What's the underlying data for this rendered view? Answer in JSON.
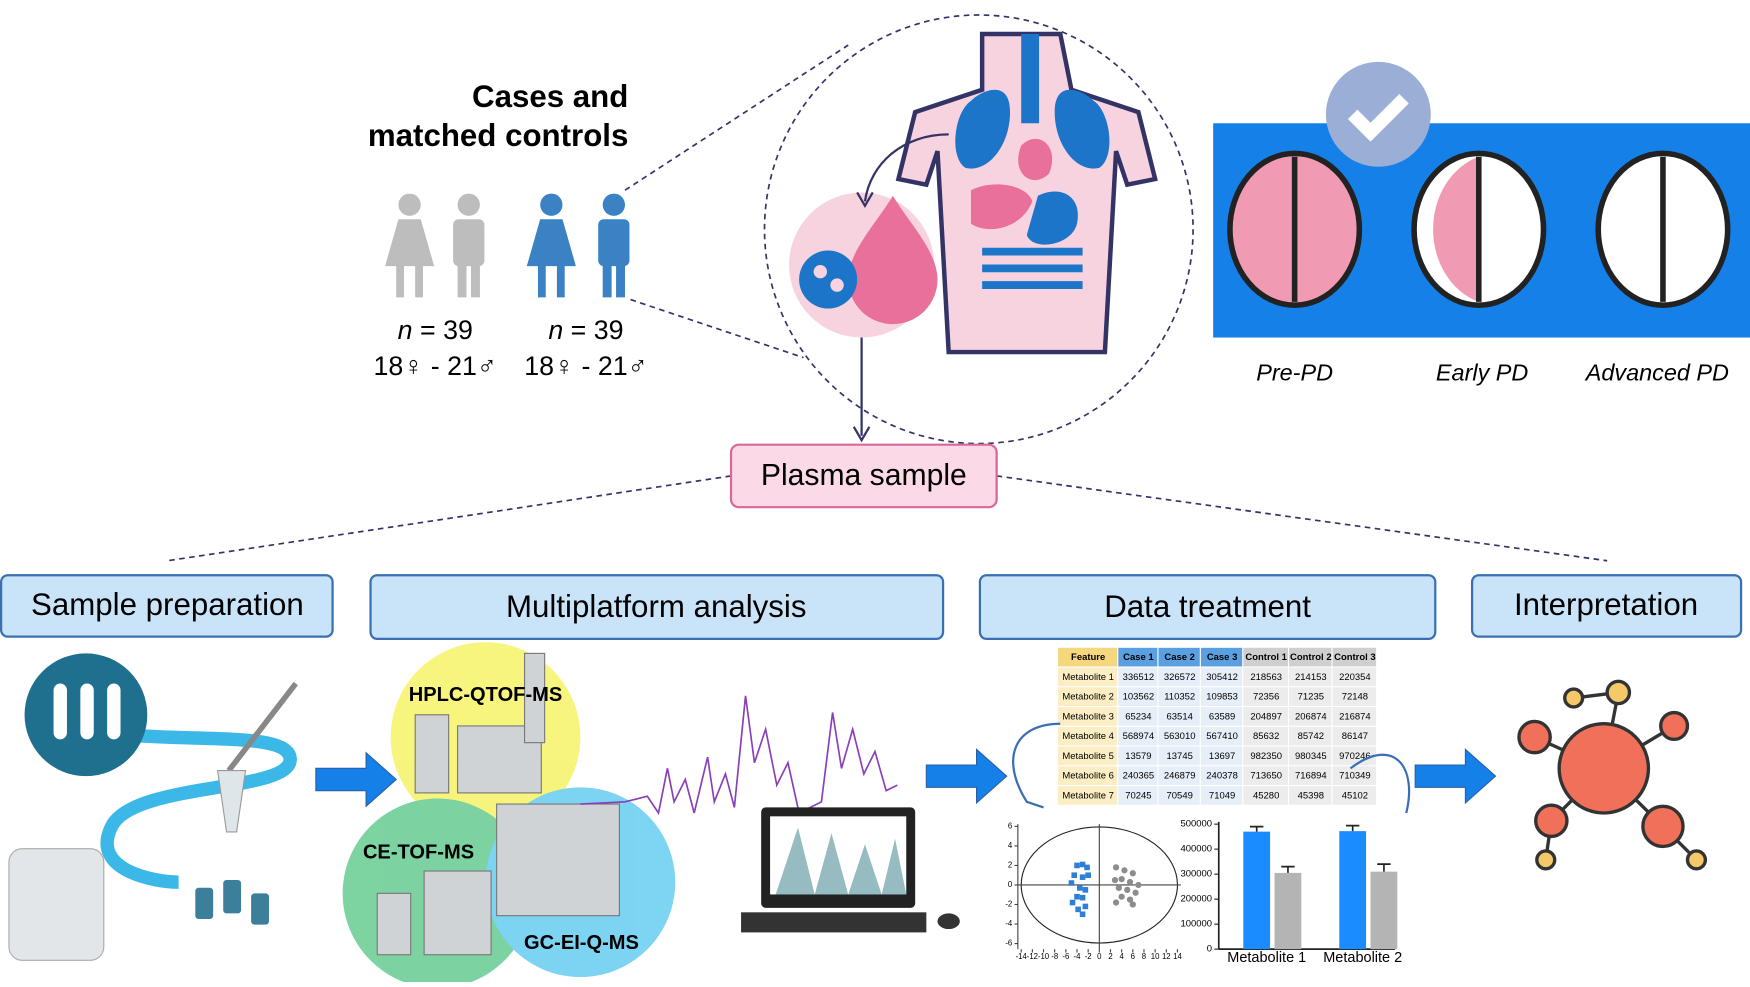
{
  "cohort": {
    "title_lines": [
      "Cases and",
      "matched controls"
    ],
    "groups": [
      {
        "n_symbol": "n",
        "n_text": " = 39",
        "sex": "18♀ - 21♂"
      },
      {
        "n_symbol": "n",
        "n_text": " = 39",
        "sex": "18♀ - 21♂"
      }
    ]
  },
  "stages": [
    "Pre-PD",
    "Early PD",
    "Advanced PD"
  ],
  "sample": "Plasma sample",
  "steps": [
    "Sample preparation",
    "Multiplatform analysis",
    "Data treatment",
    "Interpretation"
  ],
  "platforms": [
    "HPLC-QTOF-MS",
    "CE-TOF-MS",
    "GC-EI-Q-MS"
  ],
  "table": {
    "header": [
      "Feature",
      "Case 1",
      "Case 2",
      "Case 3",
      "Control 1",
      "Control 2",
      "Control 3"
    ],
    "rows": [
      [
        "Metabolite 1",
        336512,
        326572,
        305412,
        218563,
        214153,
        220354
      ],
      [
        "Metabolite 2",
        103562,
        110352,
        109853,
        72356,
        71235,
        72148
      ],
      [
        "Metabolite 3",
        65234,
        63514,
        63589,
        204897,
        206874,
        216874
      ],
      [
        "Metabolite 4",
        568974,
        563010,
        567410,
        85632,
        85742,
        86147
      ],
      [
        "Metabolite 5",
        13579,
        13745,
        13697,
        982350,
        980345,
        970246
      ],
      [
        "Metabolite 6",
        240365,
        246879,
        240378,
        713650,
        716894,
        710349
      ],
      [
        "Metabolite 7",
        70245,
        70549,
        71049,
        45280,
        45398,
        45102
      ]
    ]
  },
  "scatter": {
    "xlim": [
      -14,
      14
    ],
    "ylim": [
      -6,
      6
    ],
    "xticks": [
      -14,
      -12,
      -10,
      -8,
      -6,
      -4,
      -2,
      0,
      2,
      4,
      6,
      8,
      10,
      12,
      14
    ],
    "yticks": [
      -6,
      -4,
      -2,
      0,
      2,
      4,
      6
    ],
    "groups": [
      {
        "color": "#2f7fd8",
        "x": [
          -4,
          -3,
          -2.2,
          -4.5,
          -3,
          -2,
          -5,
          -3.5,
          -2.5,
          -4,
          -3,
          -4.8,
          -2.5,
          -3.8,
          -3
        ],
        "y": [
          2,
          2.1,
          1.8,
          1,
          0.8,
          1,
          0.2,
          -0.3,
          -0.5,
          -1.2,
          -1.3,
          -1.8,
          -2.2,
          -2.5,
          -3
        ]
      },
      {
        "color": "#8c8c8c",
        "x": [
          3,
          4.5,
          6,
          2.8,
          4,
          5.5,
          7,
          3.5,
          5,
          6.5,
          4,
          5.5,
          3,
          6
        ],
        "y": [
          1.8,
          1.5,
          1.2,
          0.5,
          0.6,
          0.3,
          0,
          -0.3,
          -0.5,
          -0.8,
          -1.2,
          -1.5,
          -1.8,
          -2
        ]
      }
    ]
  },
  "bar_chart": {
    "categories": [
      "Metabolite 1",
      "Metabolite 2"
    ],
    "ylim": [
      0,
      500000
    ],
    "yticks": [
      0,
      100000,
      200000,
      300000,
      400000,
      500000
    ],
    "series": [
      {
        "color": "#1a8cff",
        "values": [
          470000,
          472000
        ],
        "errors": [
          20000,
          22000
        ]
      },
      {
        "color": "#b4b4b4",
        "values": [
          305000,
          310000
        ],
        "errors": [
          25000,
          30000
        ]
      }
    ]
  }
}
